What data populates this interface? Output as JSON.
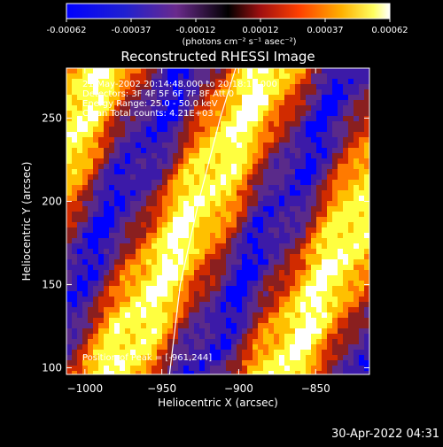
{
  "colorbar": {
    "ticks": [
      "-0.00062",
      "-0.00037",
      "-0.00012",
      "0.00012",
      "0.00037",
      "0.00062"
    ],
    "unit_label": "(photons cm⁻² s⁻¹ asec⁻²)",
    "range": [
      -0.00062,
      0.00062
    ]
  },
  "title": "Reconstructed RHESSI Image",
  "info": {
    "line1": "21-May-2002 20:14:48.000 to 20:18:16.000",
    "line2": "Detectors: 3F 4F 5F 6F 7F 8F  Att 0",
    "line3": "Energy Range: 25.0 - 50.0 keV",
    "line4": "Clean     Total counts: 4.21E+03"
  },
  "peak_label": "Position of Peak = [-961,244]",
  "footer_timestamp": "30-Apr-2022 04:31",
  "chart_data": {
    "type": "heatmap",
    "title": "Reconstructed RHESSI Image",
    "xlabel": "Heliocentric X (arcsec)",
    "ylabel": "Heliocentric Y (arcsec)",
    "xlim": [
      -1012,
      -815
    ],
    "ylim": [
      96,
      280
    ],
    "x_ticks": [
      -1000,
      -950,
      -900,
      -850
    ],
    "y_ticks": [
      100,
      150,
      200,
      250
    ],
    "x_tick_labels": [
      "−1000",
      "−950",
      "−900",
      "−850"
    ],
    "y_tick_labels": [
      "100",
      "150",
      "200",
      "250"
    ],
    "limb_curve": [
      [
        -945,
        96
      ],
      [
        -938,
        150
      ],
      [
        -926,
        200
      ],
      [
        -912,
        250
      ],
      [
        -902,
        280
      ]
    ],
    "peak": [
      -961,
      244
    ],
    "colormap": [
      "#0000ff",
      "#3c1aa8",
      "#5a2a8a",
      "#8a1f1f",
      "#d12b00",
      "#ff7a00",
      "#ffc000",
      "#ffff40",
      "#ffffff"
    ]
  }
}
